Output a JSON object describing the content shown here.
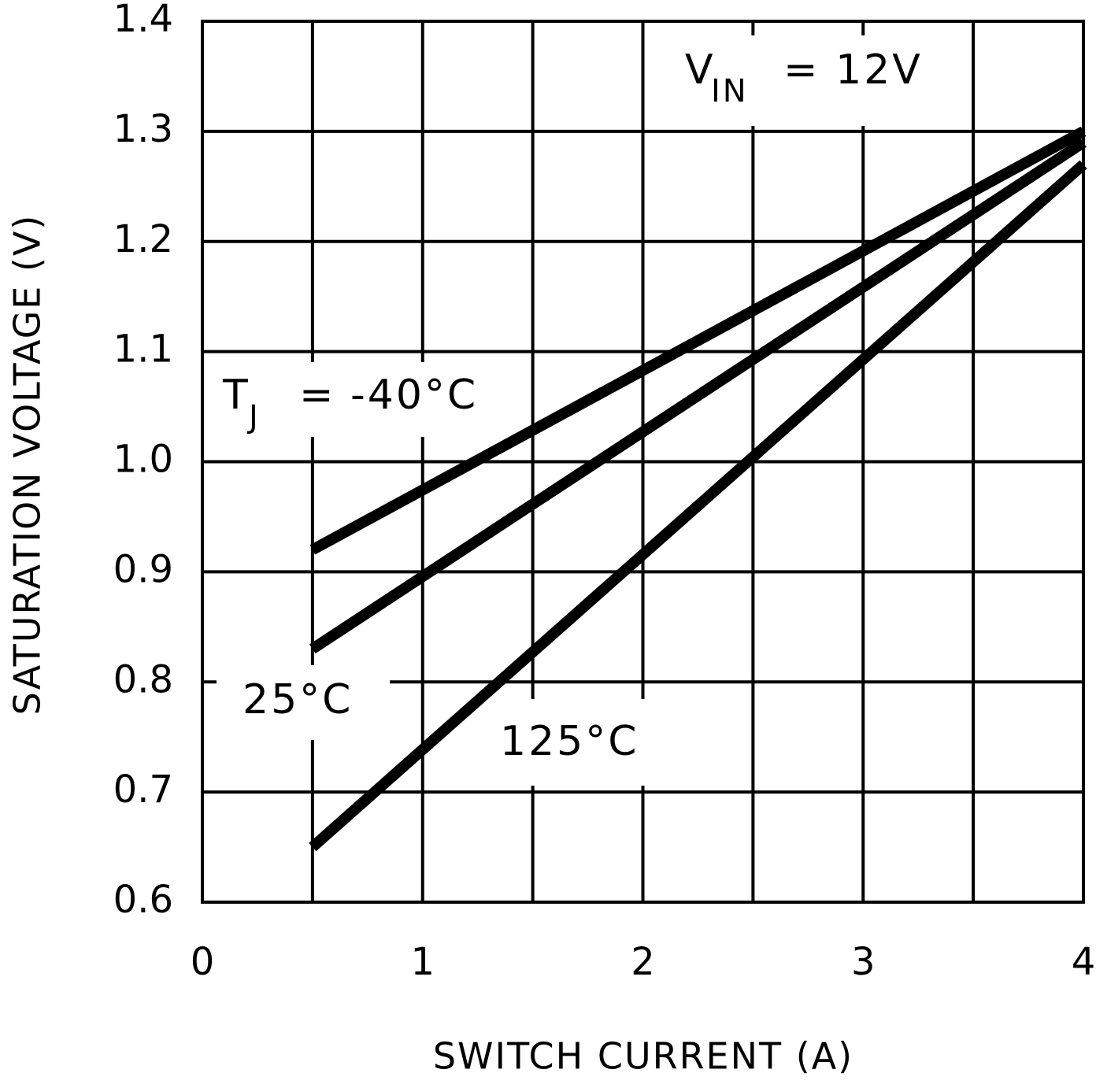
{
  "chart_data": {
    "type": "line",
    "x_label": "SWITCH CURRENT (A)",
    "y_label": "SATURATION VOLTAGE (V)",
    "x": [
      0.5,
      4
    ],
    "series": [
      {
        "name": "-40°C",
        "color": "#000000",
        "values": [
          0.92,
          1.3
        ]
      },
      {
        "name": "25°C",
        "color": "#000000",
        "values": [
          0.83,
          1.29
        ]
      },
      {
        "name": "125°C",
        "color": "#000000",
        "values": [
          0.65,
          1.27
        ]
      }
    ],
    "annotations": {
      "vin": {
        "main": "V",
        "sub": "IN",
        "tail": "= 12V"
      },
      "tj": {
        "main": "T",
        "sub": "J",
        "tail": "="
      }
    },
    "xlim": [
      0,
      4
    ],
    "xticks": [
      0,
      1,
      2,
      3,
      4
    ],
    "ylim": [
      0.6,
      1.4
    ],
    "yticks": [
      0.6,
      0.7,
      0.8,
      0.9,
      {
        "value": 1,
        "label": "1.0"
      },
      1.1,
      1.2,
      1.3,
      1.4
    ],
    "grid": true
  }
}
